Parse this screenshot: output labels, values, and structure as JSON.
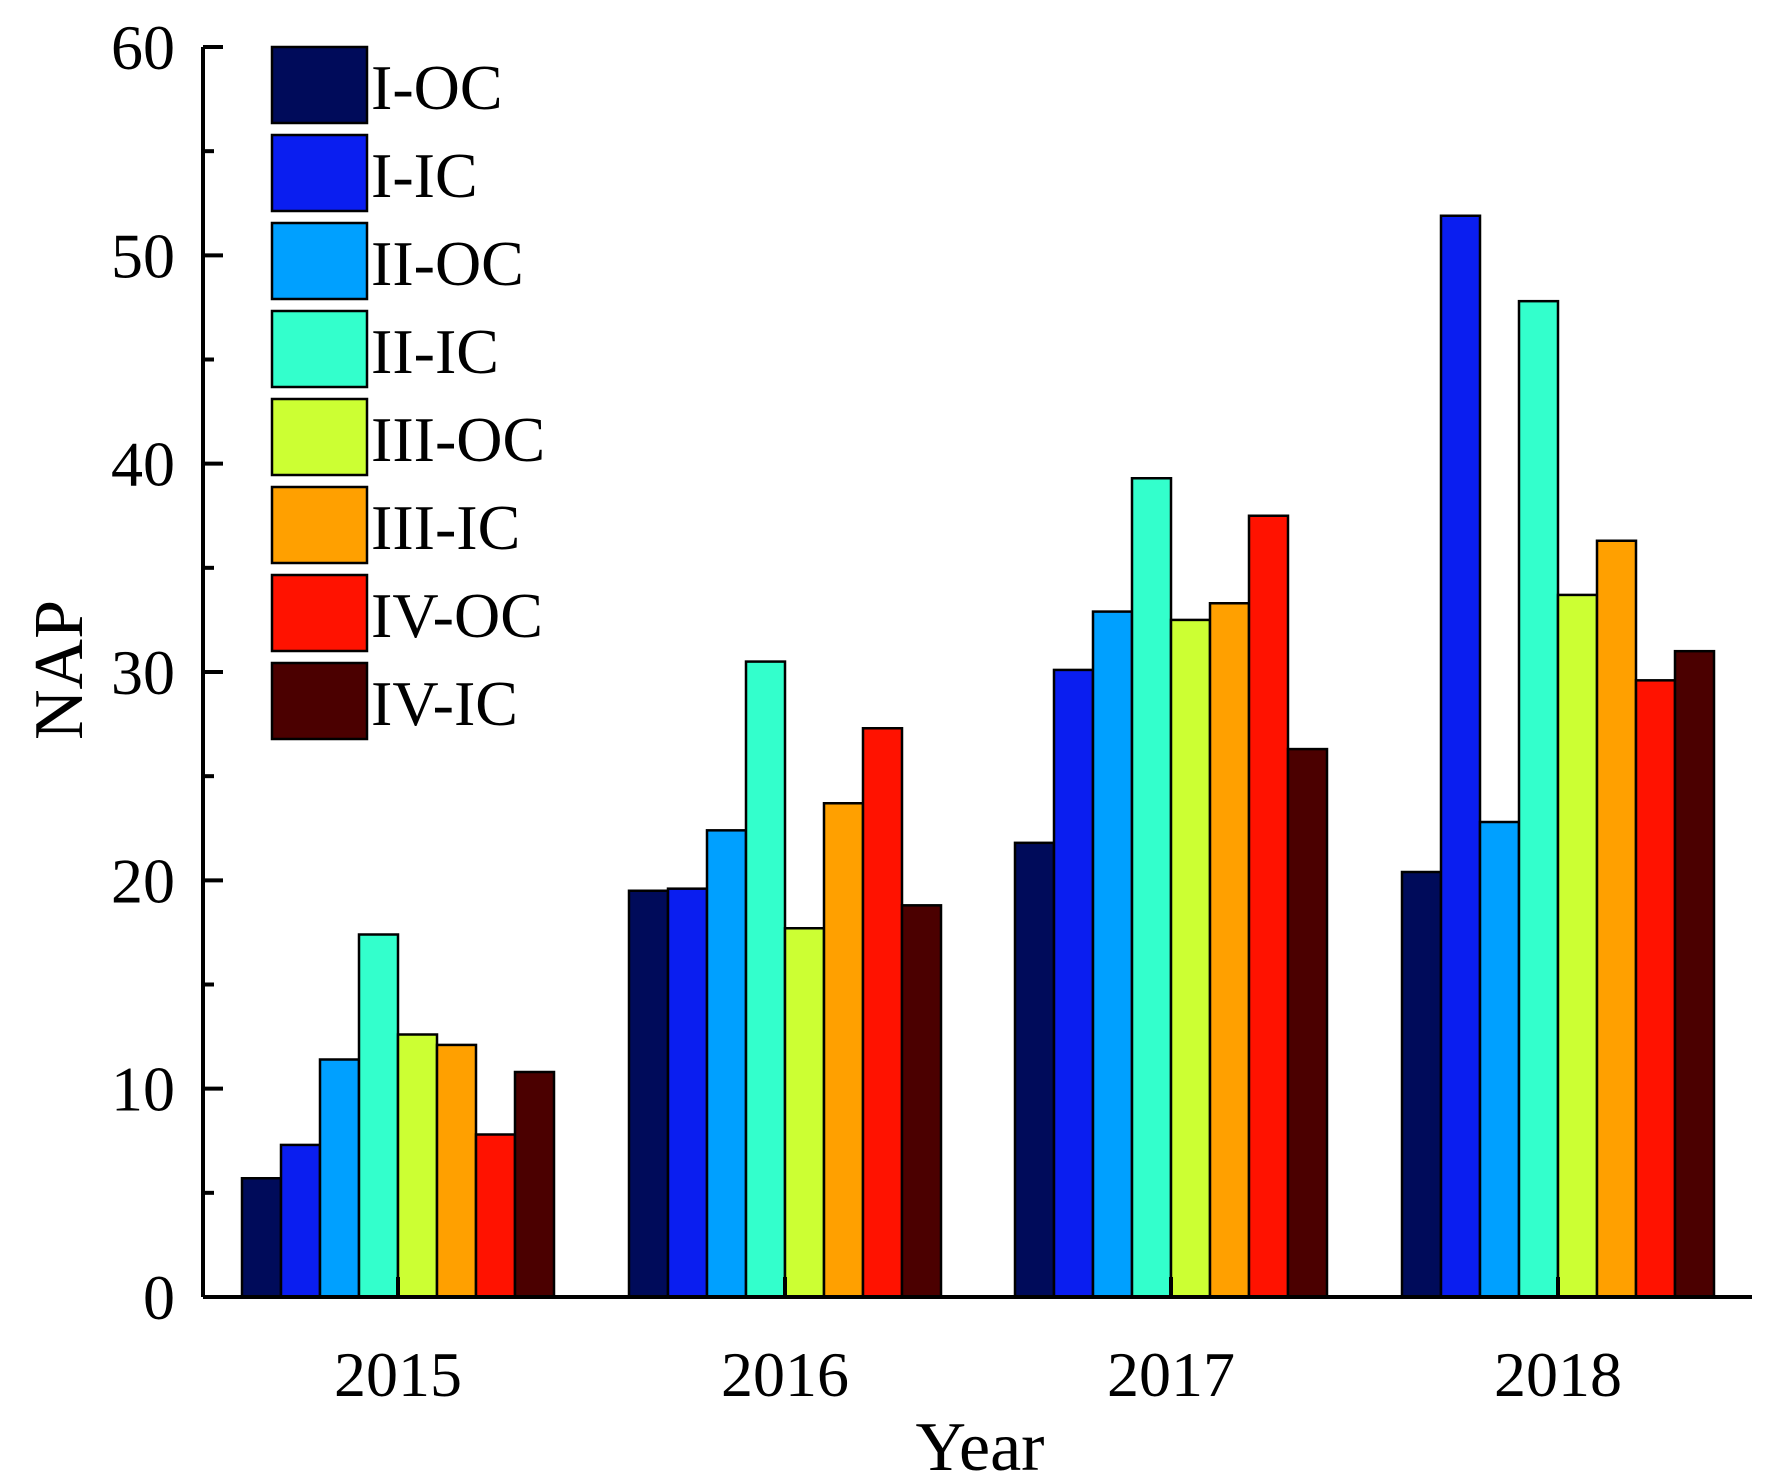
{
  "chart_data": {
    "type": "bar",
    "title": "",
    "xlabel": "Year",
    "ylabel": "NAP",
    "ylim": [
      0,
      60
    ],
    "yticks": [
      0,
      10,
      20,
      30,
      40,
      50,
      60
    ],
    "categories": [
      "2015",
      "2016",
      "2017",
      "2018"
    ],
    "legend_position": "top-left",
    "grid": false,
    "series": [
      {
        "name": "I-OC",
        "color": "#000b5a",
        "values": [
          5.7,
          19.5,
          21.8,
          20.4
        ]
      },
      {
        "name": "I-IC",
        "color": "#0a1ef0",
        "values": [
          7.3,
          19.6,
          30.1,
          51.9
        ]
      },
      {
        "name": "II-OC",
        "color": "#00a0ff",
        "values": [
          11.4,
          22.4,
          32.9,
          22.8
        ]
      },
      {
        "name": "II-IC",
        "color": "#33ffcc",
        "values": [
          17.4,
          30.5,
          39.3,
          47.8
        ]
      },
      {
        "name": "III-OC",
        "color": "#ccff33",
        "values": [
          12.6,
          17.7,
          32.5,
          33.7
        ]
      },
      {
        "name": "III-IC",
        "color": "#ffa000",
        "values": [
          12.1,
          23.7,
          33.3,
          36.3
        ]
      },
      {
        "name": "IV-OC",
        "color": "#ff1200",
        "values": [
          7.8,
          27.3,
          37.5,
          29.6
        ]
      },
      {
        "name": "IV-IC",
        "color": "#4b0000",
        "values": [
          10.8,
          18.8,
          26.3,
          31.0
        ]
      }
    ]
  }
}
